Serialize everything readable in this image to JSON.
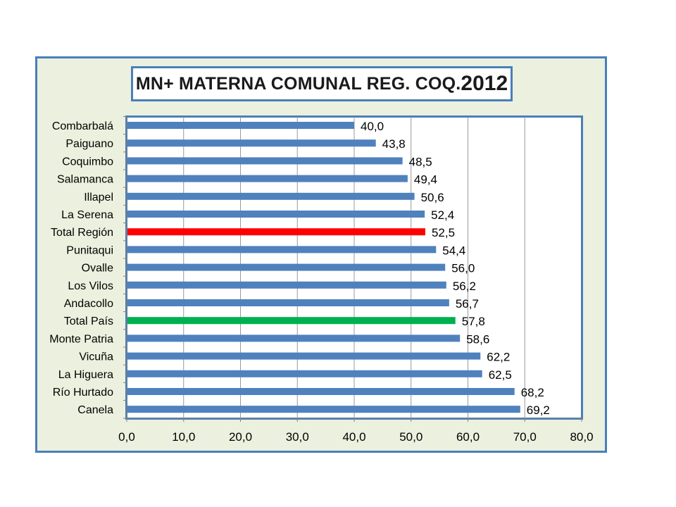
{
  "chart_data": {
    "type": "bar",
    "orientation": "horizontal",
    "title_main": "MN+ MATERNA COMUNAL REG. COQ.",
    "title_year": "2012",
    "categories": [
      "Combarbalá",
      "Paiguano",
      "Coquimbo",
      "Salamanca",
      "Illapel",
      "La Serena",
      "Total Región",
      "Punitaqui",
      "Ovalle",
      "Los Vilos",
      "Andacollo",
      "Total País",
      "Monte Patria",
      "Vicuña",
      "La Higuera",
      "Río Hurtado",
      "Canela"
    ],
    "values": [
      40.0,
      43.8,
      48.5,
      49.4,
      50.6,
      52.4,
      52.5,
      54.4,
      56.0,
      56.2,
      56.7,
      57.8,
      58.6,
      62.2,
      62.5,
      68.2,
      69.2
    ],
    "value_labels": [
      "40,0",
      "43,8",
      "48,5",
      "49,4",
      "50,6",
      "52,4",
      "52,5",
      "54,4",
      "56,0",
      "56,2",
      "56,7",
      "57,8",
      "58,6",
      "62,2",
      "62,5",
      "68,2",
      "69,2"
    ],
    "bar_colors": [
      "#4f81bd",
      "#4f81bd",
      "#4f81bd",
      "#4f81bd",
      "#4f81bd",
      "#4f81bd",
      "#ff0000",
      "#4f81bd",
      "#4f81bd",
      "#4f81bd",
      "#4f81bd",
      "#00b050",
      "#4f81bd",
      "#4f81bd",
      "#4f81bd",
      "#4f81bd",
      "#4f81bd"
    ],
    "xlim": [
      0,
      80
    ],
    "x_ticks": [
      0,
      10,
      20,
      30,
      40,
      50,
      60,
      70,
      80
    ],
    "x_tick_labels": [
      "0,0",
      "10,0",
      "20,0",
      "30,0",
      "40,0",
      "50,0",
      "60,0",
      "70,0",
      "80,0"
    ],
    "grid": true
  },
  "colors": {
    "frame_background": "#ebf1de",
    "frame_border": "#4a7ebb",
    "default_bar": "#4f81bd",
    "highlight_region": "#ff0000",
    "highlight_country": "#00b050",
    "gridline": "#999999"
  }
}
